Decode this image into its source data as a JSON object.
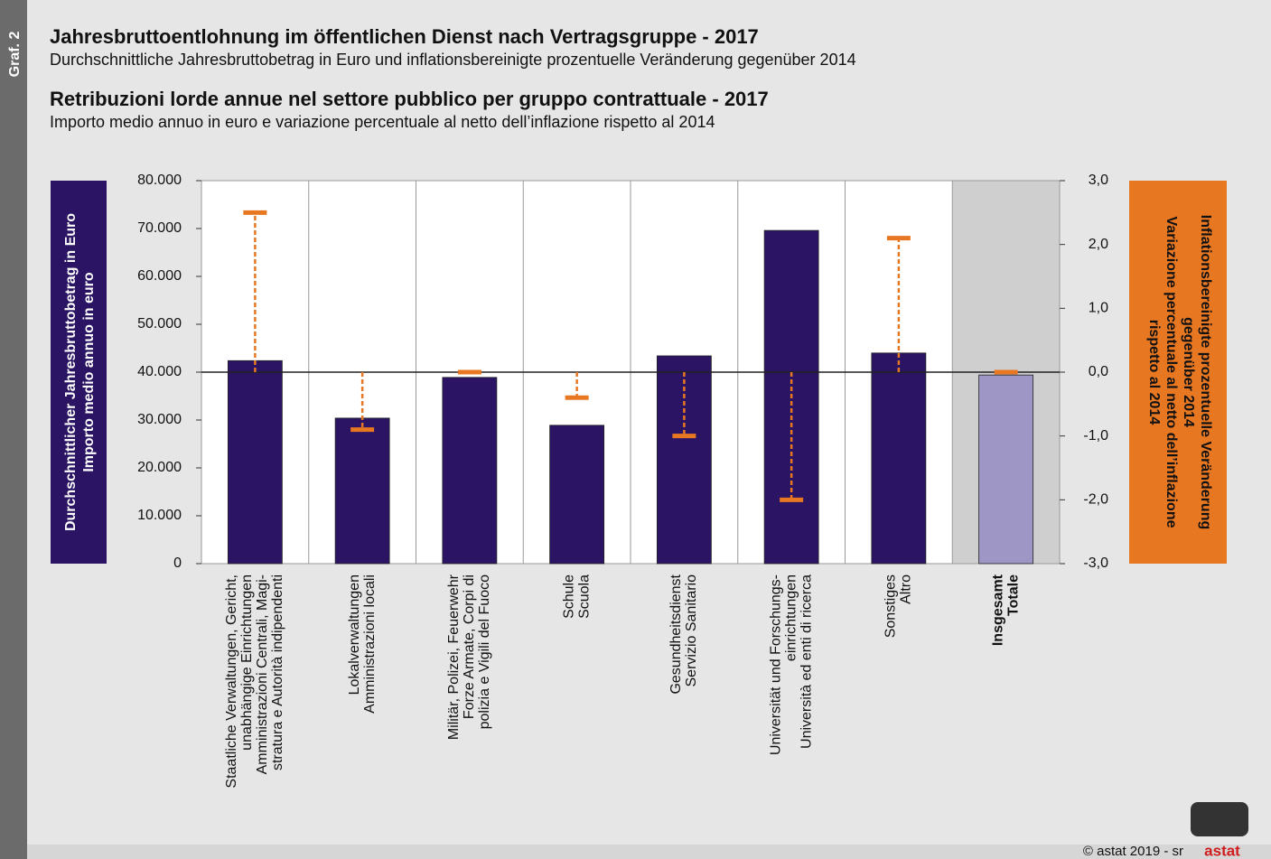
{
  "side_label": "Graf. 2",
  "footer": "© astat 2019 - sr",
  "logo": "astat",
  "chart_data": {
    "type": "bar",
    "title": "Jahresbruttoentlohnung im öffentlichen Dienst nach Vertragsgruppe - 2017",
    "subtitle": "Durchschnittliche Jahresbruttobetrag in Euro und inflationsbereinigte prozentuelle Veränderung gegenüber 2014",
    "title2": "Retribuzioni lorde annue nel settore pubblico per gruppo contrattuale - 2017",
    "subtitle2": "Importo medio annuo in euro e variazione percentuale al netto dell’inflazione rispetto al 2014",
    "ylabel": [
      "Durchschnittlicher Jahresbruttobetrag in Euro",
      "Importo medio annuo in euro"
    ],
    "y2label": [
      "Inflationsbereinigte prozentuelle Veränderung",
      "gegenüber 2014",
      "Variazione percentuale al netto dell’inflazione",
      "rispetto al 2014"
    ],
    "categories": [
      [
        "Staatliche Verwaltungen, Gericht,",
        "unabhängige Einrichtungen",
        "Amministrazioni Centrali, Magi-",
        "stratura e Autorità indipendenti"
      ],
      [
        "Lokalverwaltungen",
        "Amministrazioni locali"
      ],
      [
        "Militär, Polizei, Feuerwehr",
        "Forze Armate, Corpi di",
        "polizia e Vigili del Fuoco"
      ],
      [
        "Schule",
        "Scuola"
      ],
      [
        "Gesundheitsdienst",
        "Servizio Sanitario"
      ],
      [
        "Universität und Forschungs-",
        "einrichtungen",
        "Università ed enti di ricerca"
      ],
      [
        "Sonstiges",
        "Altro"
      ],
      [
        "Insgesamt",
        "Totale"
      ]
    ],
    "series": [
      {
        "colors": [
          "#2a1463",
          "#2a1463",
          "#2a1463",
          "#2a1463",
          "#2a1463",
          "#2a1463",
          "#2a1463",
          "#9e96c4"
        ],
        "values": [
          42400,
          30400,
          38900,
          28900,
          43400,
          69600,
          44000,
          39400
        ]
      },
      {
        "axis": "y2",
        "color": "#e87722",
        "values": [
          2.5,
          -0.9,
          0.0,
          -0.4,
          -1.0,
          -2.0,
          2.1,
          0.0
        ]
      }
    ],
    "ylim": [
      0,
      80000
    ],
    "yticks": [
      0,
      {
        "value": 10000,
        "label": "10.000"
      },
      {
        "value": 20000,
        "label": "20.000"
      },
      {
        "value": 30000,
        "label": "30.000"
      },
      {
        "value": 40000,
        "label": "40.000"
      },
      {
        "value": 50000,
        "label": "50.000"
      },
      {
        "value": 60000,
        "label": "60.000"
      },
      {
        "value": 70000,
        "label": "70.000"
      },
      {
        "value": 80000,
        "label": "80.000"
      }
    ],
    "y2lim": [
      -3,
      3
    ],
    "y2ticks": [
      {
        "value": -3,
        "label": "-3,0"
      },
      {
        "value": -2,
        "label": "-2,0"
      },
      {
        "value": -1,
        "label": "-1,0"
      },
      {
        "value": 0,
        "label": "0,0"
      },
      {
        "value": 1,
        "label": "1,0"
      },
      {
        "value": 2,
        "label": "2,0"
      },
      {
        "value": 3,
        "label": "3,0"
      }
    ]
  }
}
